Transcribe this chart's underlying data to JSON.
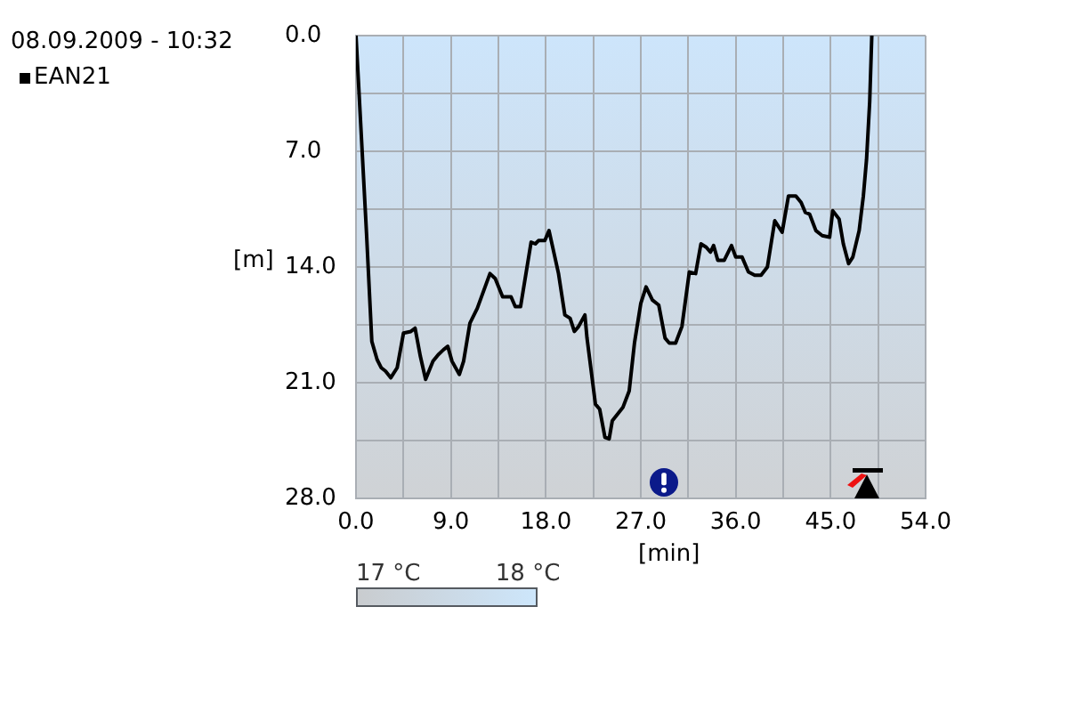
{
  "chart_data": {
    "type": "line",
    "title": "08.09.2009 - 10:32",
    "xlabel": "[min]",
    "ylabel": "[m]",
    "x": [
      0.0,
      1.0,
      1.5,
      2.0,
      2.4,
      2.8,
      3.3,
      3.9,
      4.5,
      5.2,
      5.6,
      6.1,
      6.6,
      7.3,
      7.8,
      8.3,
      8.7,
      9.1,
      9.8,
      10.2,
      10.8,
      11.5,
      12.7,
      13.2,
      13.9,
      14.7,
      15.1,
      15.6,
      16.6,
      17.0,
      17.3,
      17.9,
      18.3,
      19.2,
      19.8,
      20.3,
      20.7,
      21.1,
      21.7,
      21.9,
      22.7,
      23.1,
      23.6,
      24.0,
      24.3,
      24.8,
      25.3,
      25.9,
      26.4,
      27.0,
      27.5,
      28.1,
      28.7,
      29.3,
      29.7,
      30.3,
      30.9,
      31.6,
      32.2,
      32.7,
      33.2,
      33.6,
      33.9,
      34.3,
      34.9,
      35.6,
      36.0,
      36.6,
      37.2,
      37.8,
      38.4,
      39.0,
      39.7,
      40.4,
      41.0,
      41.7,
      42.2,
      42.6,
      43.0,
      43.6,
      44.2,
      44.9,
      45.2,
      45.8,
      46.2,
      46.7,
      47.1,
      47.7,
      48.1,
      48.4,
      48.7,
      48.9
    ],
    "series": [
      {
        "name": "EAN21",
        "color": "#000000",
        "values": [
          0.0,
          12.0,
          18.5,
          19.6,
          20.1,
          20.3,
          20.7,
          20.1,
          18.0,
          17.9,
          17.7,
          19.4,
          20.8,
          19.7,
          19.3,
          19.0,
          18.8,
          19.7,
          20.5,
          19.7,
          17.4,
          16.5,
          14.4,
          14.7,
          15.8,
          15.8,
          16.4,
          16.4,
          12.5,
          12.6,
          12.4,
          12.4,
          11.8,
          14.4,
          16.9,
          17.1,
          17.9,
          17.6,
          16.9,
          18.3,
          22.3,
          22.6,
          24.3,
          24.4,
          23.3,
          22.9,
          22.5,
          21.5,
          18.6,
          16.2,
          15.2,
          16.0,
          16.3,
          18.3,
          18.6,
          18.6,
          17.6,
          14.3,
          14.4,
          12.6,
          12.8,
          13.1,
          12.7,
          13.6,
          13.6,
          12.7,
          13.4,
          13.4,
          14.3,
          14.5,
          14.5,
          14.0,
          11.2,
          11.9,
          9.7,
          9.7,
          10.1,
          10.7,
          10.8,
          11.8,
          12.1,
          12.2,
          10.6,
          11.1,
          12.6,
          13.8,
          13.4,
          11.8,
          9.7,
          7.5,
          4.0,
          0.0
        ]
      }
    ],
    "xlim": [
      0,
      54
    ],
    "xticks": [
      {
        "value": 0,
        "label": "0.0"
      },
      {
        "value": 4.5,
        "label": null
      },
      {
        "value": 9,
        "label": "9.0"
      },
      {
        "value": 13.5,
        "label": null
      },
      {
        "value": 18,
        "label": "18.0"
      },
      {
        "value": 22.5,
        "label": null
      },
      {
        "value": 27,
        "label": "27.0"
      },
      {
        "value": 31.5,
        "label": null
      },
      {
        "value": 36,
        "label": "36.0"
      },
      {
        "value": 40.5,
        "label": null
      },
      {
        "value": 45,
        "label": "45.0"
      },
      {
        "value": 49.5,
        "label": null
      },
      {
        "value": 54,
        "label": "54.0"
      }
    ],
    "ylim": [
      28,
      0
    ],
    "yticks": [
      {
        "value": 0,
        "label": "0.0"
      },
      {
        "value": 3.5,
        "label": null
      },
      {
        "value": 7,
        "label": "7.0"
      },
      {
        "value": 10.5,
        "label": null
      },
      {
        "value": 14,
        "label": "14.0"
      },
      {
        "value": 17.5,
        "label": null
      },
      {
        "value": 21,
        "label": "21.0"
      },
      {
        "value": 24.5,
        "label": null
      },
      {
        "value": 28,
        "label": "28.0"
      }
    ],
    "clim": [
      17,
      18
    ],
    "cticks": [
      {
        "value": 17,
        "label": "17 °C"
      },
      {
        "value": 18,
        "label": "18 °C"
      }
    ],
    "grid": true,
    "legend": "top left"
  }
}
